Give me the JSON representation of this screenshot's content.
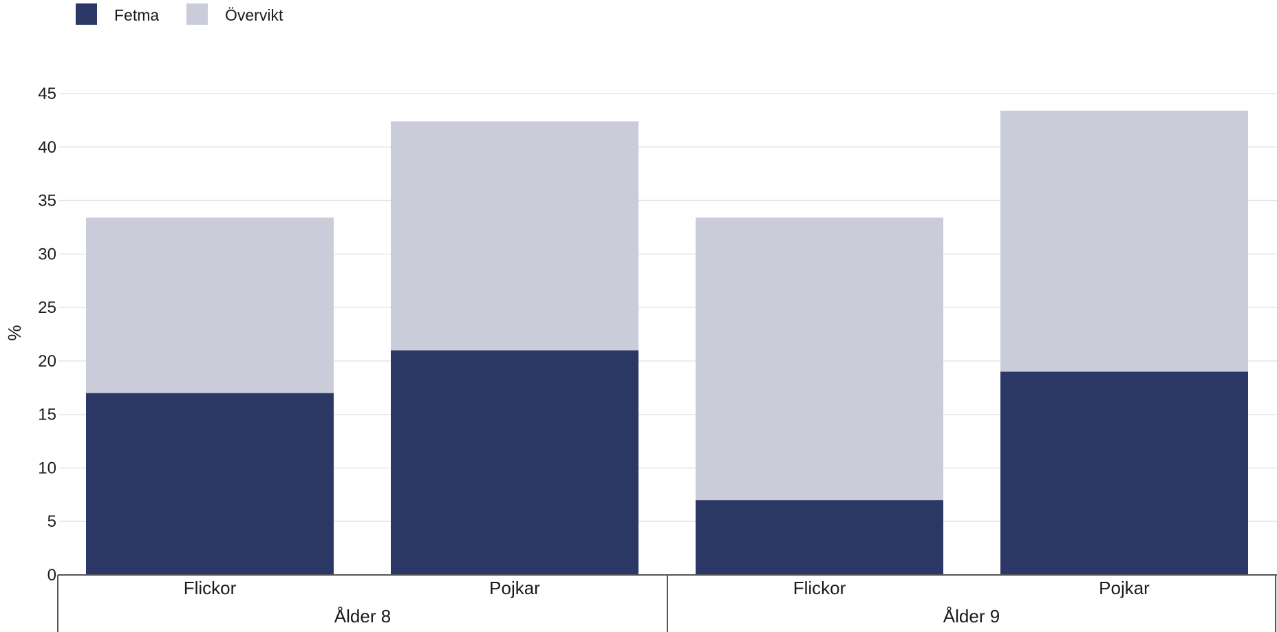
{
  "chart_data": {
    "type": "bar",
    "stacked": true,
    "legend": {
      "position": "top-left",
      "entries": [
        {
          "label": "Fetma",
          "color": "#2b3765"
        },
        {
          "label": "Övervikt",
          "color": "#cacdd9"
        }
      ]
    },
    "ylabel": "%",
    "ylim": [
      0,
      45
    ],
    "yticks": [
      0,
      5,
      10,
      15,
      20,
      25,
      30,
      35,
      40,
      45
    ],
    "grid": true,
    "groups": [
      {
        "label": "Ålder 8",
        "categories": [
          "Flickor",
          "Pojkar"
        ]
      },
      {
        "label": "Ålder 9",
        "categories": [
          "Flickor",
          "Pojkar"
        ]
      }
    ],
    "categories": [
      "Flickor",
      "Pojkar",
      "Flickor",
      "Pojkar"
    ],
    "series": [
      {
        "name": "Fetma",
        "color": "#2b3765",
        "values": [
          17.0,
          21.0,
          7.0,
          19.0
        ]
      },
      {
        "name": "Övervikt",
        "color": "#cacdd9",
        "values": [
          16.4,
          21.4,
          26.4,
          24.4
        ]
      }
    ]
  }
}
